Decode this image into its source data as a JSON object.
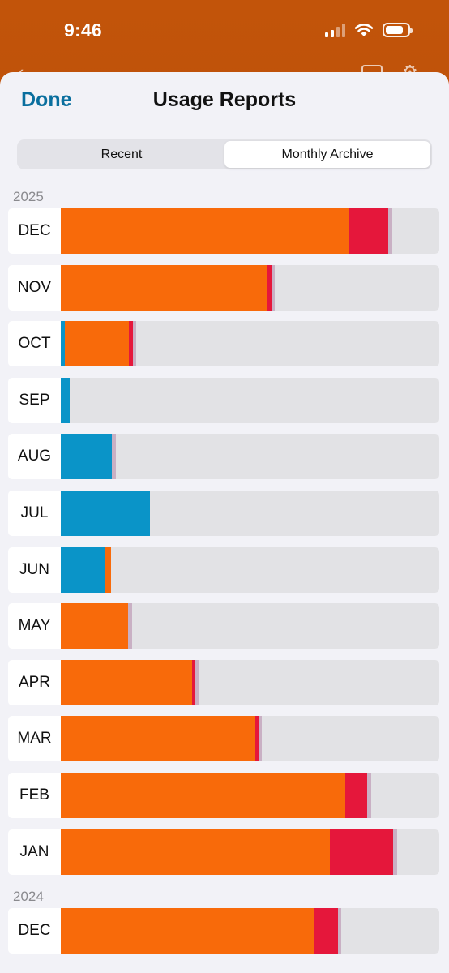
{
  "status_bar": {
    "time": "9:46",
    "icons": [
      "cellular-signal-icon",
      "wifi-icon",
      "battery-icon"
    ]
  },
  "sheet": {
    "done_label": "Done",
    "title": "Usage Reports"
  },
  "tabs": [
    {
      "label": "Recent",
      "active": false
    },
    {
      "label": "Monthly Archive",
      "active": true
    }
  ],
  "colors": {
    "blue": "#0a94c8",
    "orange": "#f86a0a",
    "red": "#e5173b",
    "pink": "#c9b0c4",
    "empty": "#e2e2e5",
    "accent": "#0a6f9e"
  },
  "years": [
    {
      "year": "2025",
      "months": [
        {
          "label": "DEC",
          "segments": {
            "blue": 0,
            "orange": 76,
            "red": 10.5,
            "pink": 1
          }
        },
        {
          "label": "NOV",
          "segments": {
            "blue": 0,
            "orange": 54.6,
            "red": 1,
            "pink": 1
          }
        },
        {
          "label": "OCT",
          "segments": {
            "blue": 1,
            "orange": 17,
            "red": 1,
            "pink": 1
          }
        },
        {
          "label": "SEP",
          "segments": {
            "blue": 2.4,
            "orange": 0,
            "red": 0,
            "pink": 0
          }
        },
        {
          "label": "AUG",
          "segments": {
            "blue": 13.5,
            "orange": 0,
            "red": 0,
            "pink": 1
          }
        },
        {
          "label": "JUL",
          "segments": {
            "blue": 23.5,
            "orange": 0,
            "red": 0,
            "pink": 0
          }
        },
        {
          "label": "JUN",
          "segments": {
            "blue": 11.8,
            "orange": 1.4,
            "red": 0,
            "pink": 0
          }
        },
        {
          "label": "MAY",
          "segments": {
            "blue": 0,
            "orange": 17.8,
            "red": 0,
            "pink": 1
          }
        },
        {
          "label": "APR",
          "segments": {
            "blue": 0,
            "orange": 34.7,
            "red": 0.8,
            "pink": 1
          }
        },
        {
          "label": "MAR",
          "segments": {
            "blue": 0,
            "orange": 51.4,
            "red": 0.8,
            "pink": 1
          }
        },
        {
          "label": "FEB",
          "segments": {
            "blue": 0,
            "orange": 75.2,
            "red": 5.8,
            "pink": 1
          }
        },
        {
          "label": "JAN",
          "segments": {
            "blue": 0,
            "orange": 71.1,
            "red": 16.7,
            "pink": 1
          }
        }
      ]
    },
    {
      "year": "2024",
      "months": [
        {
          "label": "DEC",
          "segments": {
            "blue": 0,
            "orange": 67,
            "red": 6.2,
            "pink": 1
          }
        }
      ]
    }
  ]
}
